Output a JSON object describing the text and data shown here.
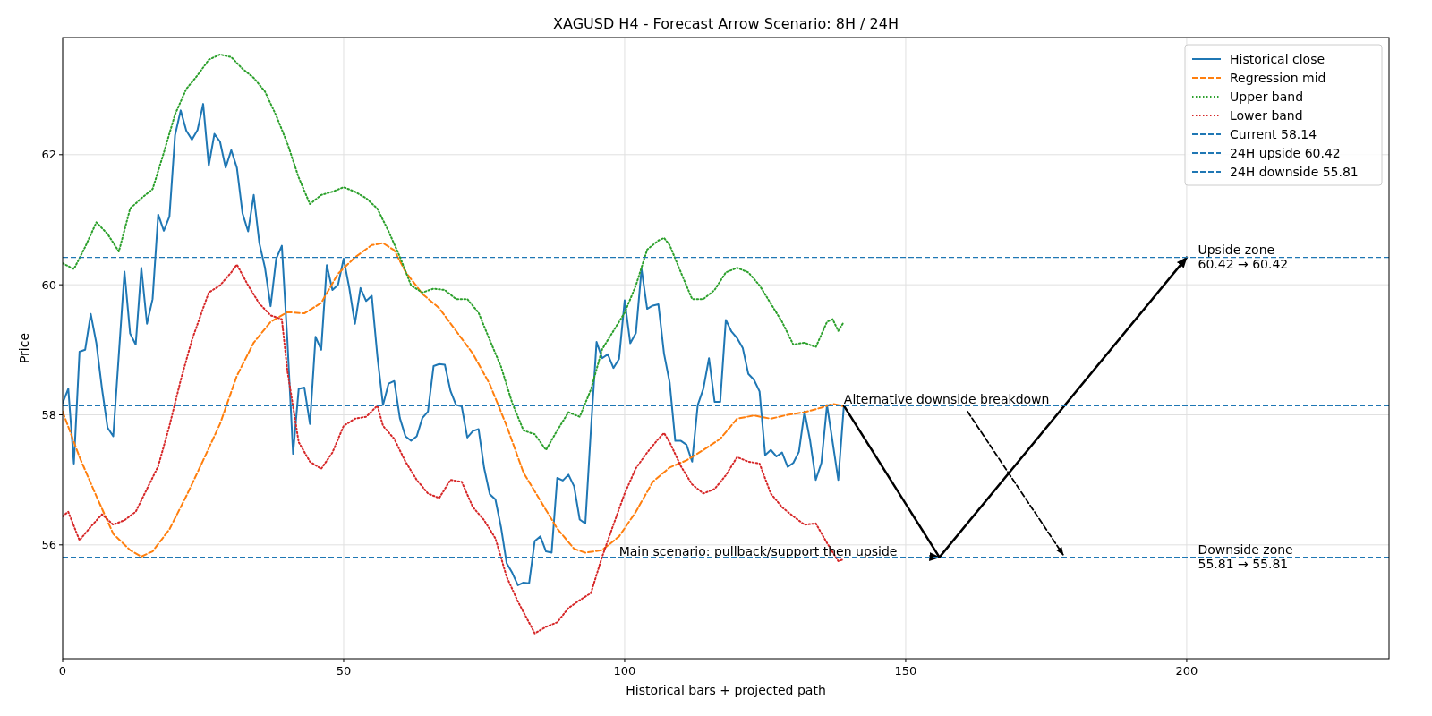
{
  "chart_data": {
    "type": "line",
    "title": "XAGUSD H4 - Forecast Arrow Scenario: 8H / 24H",
    "xlabel": "Historical bars + projected path",
    "ylabel": "Price",
    "xlim": [
      0,
      236
    ],
    "xticks": [
      0,
      50,
      100,
      150,
      200
    ],
    "ylim": [
      54.25,
      63.8
    ],
    "yticks": [
      56,
      58,
      60,
      62
    ],
    "grid": true,
    "legend": "top right",
    "marker": "none",
    "series": [
      {
        "name": "Historical close",
        "color": "#1f77b4",
        "line_style": "solid",
        "x": [
          0,
          1,
          2,
          3,
          4,
          5,
          6,
          7,
          8,
          9,
          11,
          12,
          13,
          14,
          15,
          16,
          17,
          18,
          19,
          20,
          21,
          22,
          23,
          24,
          25,
          26,
          27,
          28,
          29,
          30,
          31,
          32,
          33,
          34,
          35,
          36,
          37,
          38,
          39,
          40,
          41,
          42,
          43,
          44,
          45,
          46,
          47,
          48,
          49,
          50,
          51,
          52,
          53,
          54,
          55,
          56,
          57,
          58,
          59,
          60,
          61,
          62,
          63,
          64,
          65,
          66,
          67,
          68,
          69,
          70,
          71,
          72,
          73,
          74,
          75,
          76,
          77,
          78,
          79,
          80,
          81,
          82,
          83,
          84,
          85,
          86,
          87,
          88,
          89,
          90,
          91,
          92,
          93,
          94,
          95,
          96,
          97,
          98,
          99,
          100,
          101,
          102,
          103,
          104,
          105,
          106,
          107,
          108,
          109,
          110,
          111,
          112,
          113,
          114,
          115,
          116,
          117,
          118,
          119,
          120,
          121,
          122,
          123,
          124,
          125,
          126,
          127,
          128,
          129,
          130,
          131,
          132,
          133,
          134,
          135,
          136,
          137,
          138,
          139
        ],
        "values": [
          58.18,
          58.4,
          57.25,
          58.97,
          59.0,
          59.55,
          59.1,
          58.4,
          57.8,
          57.67,
          60.2,
          59.25,
          59.08,
          60.26,
          59.4,
          59.78,
          61.08,
          60.83,
          61.05,
          62.3,
          62.68,
          62.37,
          62.23,
          62.38,
          62.78,
          61.83,
          62.32,
          62.2,
          61.8,
          62.07,
          61.8,
          61.1,
          60.82,
          61.38,
          60.64,
          60.26,
          59.67,
          60.4,
          60.6,
          59.12,
          57.4,
          58.4,
          58.42,
          57.86,
          59.2,
          59.0,
          60.3,
          59.92,
          60.0,
          60.4,
          59.95,
          59.4,
          59.95,
          59.75,
          59.83,
          58.9,
          58.15,
          58.48,
          58.52,
          57.95,
          57.67,
          57.6,
          57.67,
          57.95,
          58.05,
          58.75,
          58.78,
          58.77,
          58.37,
          58.15,
          58.13,
          57.65,
          57.75,
          57.78,
          57.18,
          56.78,
          56.7,
          56.27,
          55.72,
          55.57,
          55.38,
          55.42,
          55.41,
          56.06,
          56.13,
          55.9,
          55.88,
          57.03,
          56.99,
          57.08,
          56.9,
          56.39,
          56.33,
          57.78,
          59.12,
          58.87,
          58.93,
          58.72,
          58.86,
          59.76,
          59.1,
          59.26,
          60.24,
          59.63,
          59.68,
          59.7,
          58.94,
          58.5,
          57.6,
          57.6,
          57.54,
          57.28,
          58.15,
          58.4,
          58.87,
          58.2,
          58.2,
          59.46,
          59.28,
          59.18,
          59.03,
          58.63,
          58.54,
          58.36,
          57.38,
          57.46,
          57.36,
          57.42,
          57.2,
          57.26,
          57.43,
          58.05,
          57.6,
          57.0,
          57.26,
          58.15,
          57.58,
          57.0,
          58.14
        ]
      },
      {
        "name": "Regression mid",
        "color": "#ff7f0e",
        "line_style": "dashed",
        "x": [
          0,
          3,
          6,
          9,
          12,
          14,
          16,
          19,
          22,
          25,
          28,
          31,
          34,
          37,
          40,
          43,
          46,
          49,
          52,
          55,
          57,
          59,
          61,
          64,
          67,
          70,
          73,
          76,
          79,
          82,
          85,
          88,
          91,
          93,
          96,
          99,
          102,
          105,
          108,
          111,
          114,
          117,
          120,
          123,
          126,
          129,
          132,
          135,
          137,
          139
        ],
        "values": [
          58.05,
          57.35,
          56.75,
          56.17,
          55.92,
          55.82,
          55.9,
          56.24,
          56.75,
          57.3,
          57.86,
          58.6,
          59.11,
          59.43,
          59.58,
          59.56,
          59.72,
          60.17,
          60.42,
          60.61,
          60.64,
          60.53,
          60.2,
          59.86,
          59.64,
          59.29,
          58.94,
          58.47,
          57.83,
          57.11,
          56.68,
          56.25,
          55.94,
          55.88,
          55.92,
          56.13,
          56.51,
          56.97,
          57.19,
          57.3,
          57.46,
          57.63,
          57.94,
          57.99,
          57.94,
          58.0,
          58.04,
          58.11,
          58.17,
          58.13
        ]
      },
      {
        "name": "Upper band",
        "color": "#2ca02c",
        "line_style": "dotted",
        "x": [
          0,
          2,
          4,
          6,
          8,
          10,
          12,
          14,
          16,
          18,
          20,
          22,
          24,
          26,
          28,
          30,
          32,
          34,
          36,
          38,
          40,
          42,
          44,
          46,
          48,
          50,
          52,
          54,
          56,
          58,
          60,
          62,
          64,
          66,
          68,
          70,
          72,
          74,
          76,
          78,
          80,
          82,
          84,
          86,
          88,
          90,
          92,
          94,
          96,
          98,
          100,
          102,
          104,
          106,
          107,
          108,
          110,
          112,
          114,
          116,
          118,
          120,
          122,
          124,
          126,
          128,
          130,
          132,
          134,
          136,
          137,
          138,
          139
        ],
        "values": [
          60.33,
          60.24,
          60.58,
          60.96,
          60.78,
          60.51,
          61.17,
          61.33,
          61.47,
          62.03,
          62.62,
          63.01,
          63.22,
          63.46,
          63.54,
          63.5,
          63.32,
          63.18,
          62.97,
          62.6,
          62.17,
          61.65,
          61.24,
          61.38,
          61.43,
          61.5,
          61.43,
          61.33,
          61.17,
          60.82,
          60.43,
          59.99,
          59.88,
          59.94,
          59.92,
          59.78,
          59.78,
          59.57,
          59.15,
          58.74,
          58.18,
          57.76,
          57.7,
          57.46,
          57.76,
          58.04,
          57.97,
          58.39,
          59.01,
          59.29,
          59.57,
          59.99,
          60.54,
          60.68,
          60.72,
          60.61,
          60.19,
          59.78,
          59.78,
          59.92,
          60.19,
          60.26,
          60.19,
          59.99,
          59.71,
          59.43,
          59.08,
          59.11,
          59.04,
          59.43,
          59.47,
          59.29,
          59.43
        ]
      },
      {
        "name": "Lower band",
        "color": "#d62728",
        "line_style": "dotted",
        "x": [
          0,
          1,
          3,
          5,
          7,
          9,
          11,
          13,
          15,
          17,
          19,
          21,
          23,
          25,
          26,
          28,
          30,
          31,
          33,
          35,
          37,
          39,
          40,
          42,
          44,
          46,
          48,
          50,
          52,
          54,
          56,
          57,
          59,
          61,
          63,
          65,
          67,
          69,
          71,
          73,
          75,
          77,
          79,
          81,
          84,
          86,
          88,
          90,
          92,
          94,
          96,
          98,
          100,
          102,
          104,
          106,
          107,
          108,
          110,
          112,
          114,
          116,
          118,
          120,
          122,
          124,
          126,
          128,
          130,
          132,
          134,
          136,
          138,
          139
        ],
        "values": [
          56.44,
          56.51,
          56.07,
          56.28,
          56.47,
          56.31,
          56.38,
          56.51,
          56.86,
          57.21,
          57.83,
          58.53,
          59.15,
          59.64,
          59.88,
          59.99,
          60.19,
          60.31,
          59.99,
          59.71,
          59.53,
          59.47,
          58.67,
          57.58,
          57.28,
          57.17,
          57.42,
          57.83,
          57.94,
          57.97,
          58.14,
          57.83,
          57.63,
          57.28,
          57.0,
          56.79,
          56.72,
          57.0,
          56.97,
          56.58,
          56.38,
          56.1,
          55.51,
          55.13,
          54.64,
          54.74,
          54.81,
          55.03,
          55.15,
          55.26,
          55.82,
          56.31,
          56.79,
          57.18,
          57.42,
          57.63,
          57.72,
          57.58,
          57.21,
          56.93,
          56.79,
          56.86,
          57.07,
          57.35,
          57.28,
          57.25,
          56.79,
          56.58,
          56.44,
          56.31,
          56.33,
          56.03,
          55.75,
          55.78
        ]
      },
      {
        "color": "#000000",
        "line_style": "solid",
        "x": [
          139,
          156,
          200
        ],
        "values": [
          58.14,
          55.81,
          60.42
        ]
      },
      {
        "color": "#000000",
        "line_style": "dashed",
        "x": [
          161,
          178
        ],
        "values": [
          58.05,
          55.85
        ]
      }
    ],
    "ref_lines": [
      {
        "axis": "y",
        "value": 58.14,
        "label": "Current 58.14",
        "color": "#1f77b4",
        "line_style": "dashed"
      },
      {
        "axis": "y",
        "value": 60.42,
        "label": "24H upside 60.42",
        "color": "#1f77b4",
        "line_style": "dashed"
      },
      {
        "axis": "y",
        "value": 55.81,
        "label": "24H downside 55.81",
        "color": "#1f77b4",
        "line_style": "dashed"
      }
    ],
    "annotations": [
      {
        "text": "Alternative downside breakdown",
        "x": 139,
        "y": 58.14
      },
      {
        "text": "Main scenario: pullback/support then upside",
        "x": 99,
        "y": 55.81
      },
      {
        "text": "Upside zone\n60.42 → 60.42",
        "x": 202,
        "y": 60.42
      },
      {
        "text": "Downside zone\n55.81 → 55.81",
        "x": 202,
        "y": 55.81
      }
    ]
  }
}
